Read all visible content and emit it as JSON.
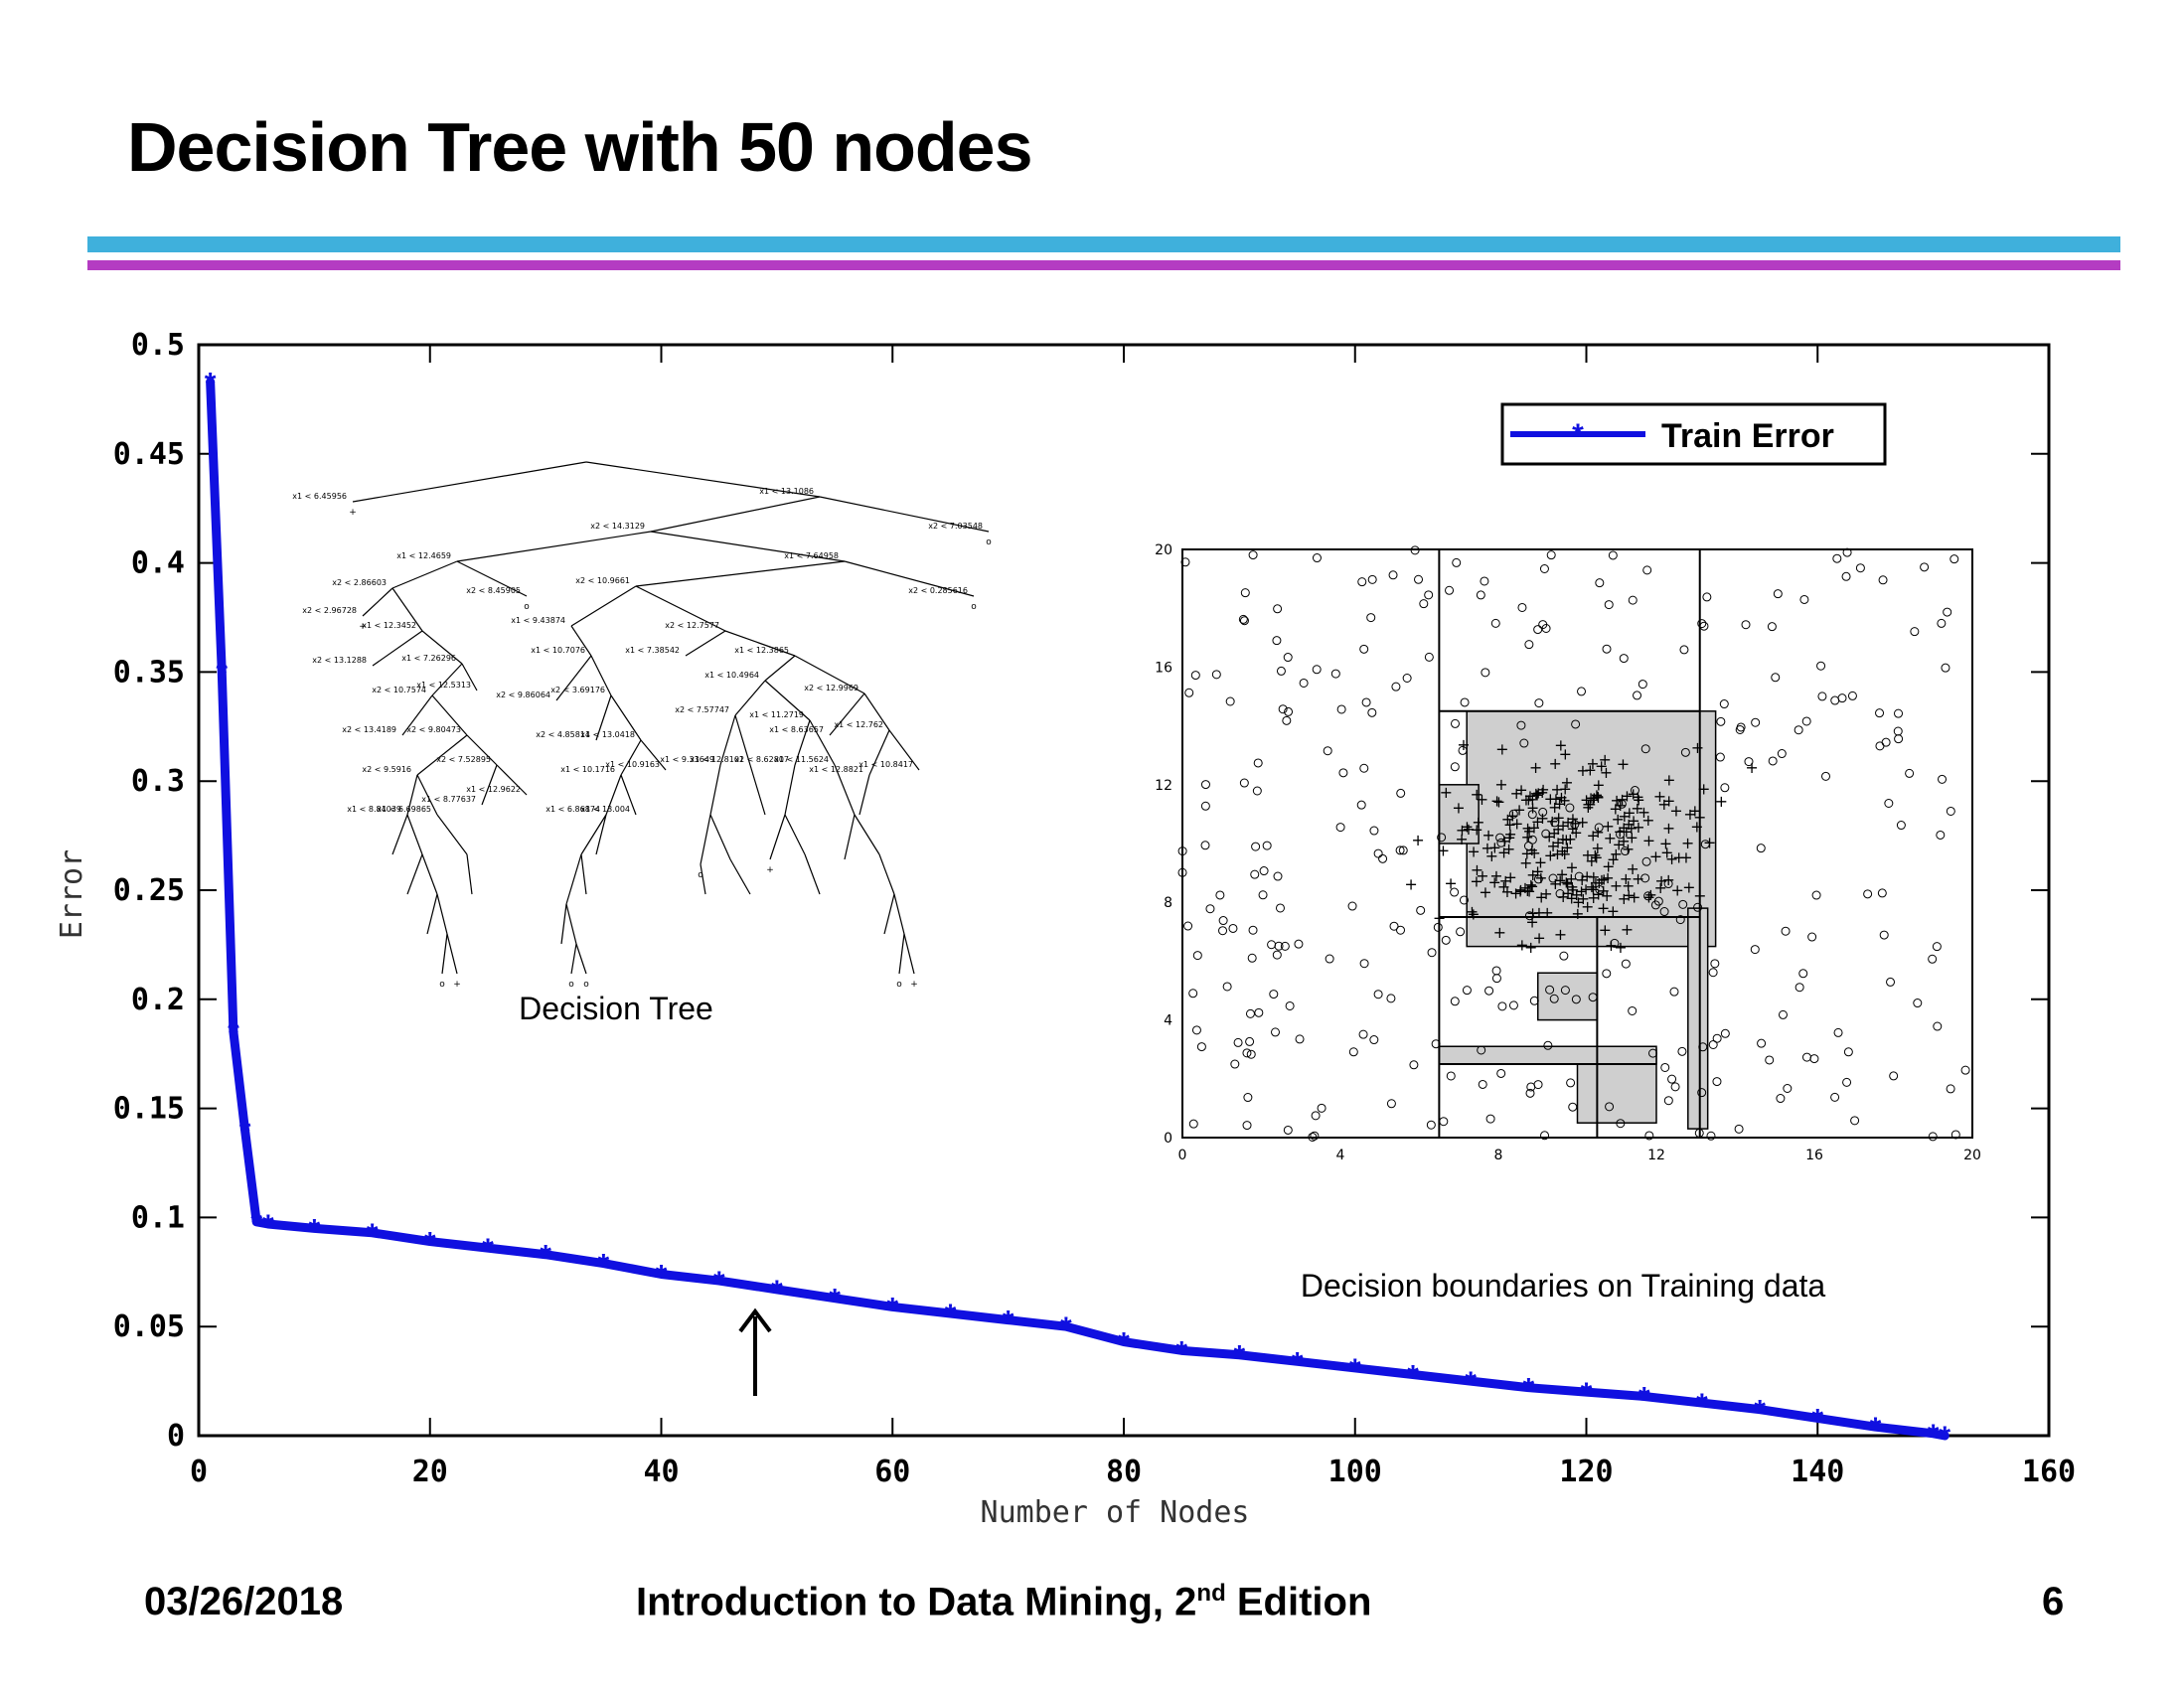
{
  "slide": {
    "title": "Decision Tree with 50 nodes",
    "footer_date": "03/26/2018",
    "footer_book_prefix": "Introduction to Data Mining, 2",
    "footer_book_sup": "nd",
    "footer_book_suffix": " Edition",
    "page_number": "6"
  },
  "colors": {
    "series": "#1010e0",
    "rule_top": "#3fb0dc",
    "rule_bottom": "#b43cc2"
  },
  "insets": {
    "tree_caption": "Decision Tree",
    "boundary_caption": "Decision boundaries on Training data",
    "tree_splits": [
      "x1 < 6.45956",
      "x1 < 13.1086",
      "x2 < 7.03548",
      "x2 < 14.3129",
      "x1 < 12.4659",
      "x1 < 7.64958",
      "x2 < 0.285616",
      "x2 < 2.86603",
      "x2 < 8.45905",
      "x1 < 12.3452",
      "x2 < 2.96728",
      "x2 < 10.9661",
      "x1 < 9.43874",
      "x2 < 12.7577",
      "x1 < 10.7076",
      "x1 < 7.38542",
      "x1 < 12.3865",
      "x2 < 12.9969",
      "x1 < 10.4964",
      "x1 < 7.26296",
      "x2 < 13.1288",
      "x1 < 12.5313",
      "x2 < 10.7574",
      "x2 < 3.69176",
      "x2 < 9.86064",
      "x2 < 7.57747",
      "x1 < 11.2719",
      "x1 < 12.762",
      "x1 < 8.63657",
      "x2 < 9.80473",
      "x2 < 13.4189",
      "x1 < 13.0418",
      "x2 < 4.85814",
      "x2 < 7.52895",
      "x2 < 9.5916",
      "x1 < 10.9163",
      "x1 < 10.1716",
      "x1 < 12.8101",
      "x1 < 9.33649",
      "x2 < 8.62807",
      "x1 < 11.5624",
      "x1 < 10.8417",
      "x1 < 12.8821",
      "x1 < 8.84039",
      "x1 < 6.69865",
      "x1 < 12.9622",
      "x1 < 8.77637",
      "x1 < 6.86874",
      "x1 < 13.004"
    ],
    "boundary_ticks": [
      "0",
      "4",
      "8",
      "12",
      "16",
      "20"
    ]
  },
  "chart_data": {
    "type": "line",
    "title": "",
    "xlabel": "Number of Nodes",
    "ylabel": "Error",
    "xlim": [
      0,
      160
    ],
    "ylim": [
      0,
      0.5
    ],
    "x_ticks": [
      "0",
      "20",
      "40",
      "60",
      "80",
      "100",
      "120",
      "140",
      "160"
    ],
    "y_ticks": [
      "0",
      "0.05",
      "0.1",
      "0.15",
      "0.2",
      "0.25",
      "0.3",
      "0.35",
      "0.4",
      "0.45",
      "0.5"
    ],
    "grid": false,
    "legend_position": "top-right",
    "annotation": "arrow at 48 nodes",
    "series": [
      {
        "name": "Train Error",
        "x": [
          1,
          2,
          3,
          4,
          5,
          6,
          10,
          15,
          20,
          25,
          30,
          35,
          40,
          45,
          50,
          55,
          60,
          65,
          70,
          75,
          80,
          85,
          90,
          95,
          100,
          105,
          110,
          115,
          120,
          125,
          130,
          135,
          140,
          145,
          150,
          151
        ],
        "y": [
          0.483,
          0.35,
          0.185,
          0.14,
          0.098,
          0.097,
          0.095,
          0.093,
          0.089,
          0.086,
          0.083,
          0.079,
          0.074,
          0.071,
          0.067,
          0.063,
          0.059,
          0.056,
          0.053,
          0.05,
          0.043,
          0.039,
          0.037,
          0.034,
          0.031,
          0.028,
          0.025,
          0.022,
          0.02,
          0.018,
          0.015,
          0.012,
          0.008,
          0.004,
          0.001,
          0.0
        ]
      }
    ]
  }
}
